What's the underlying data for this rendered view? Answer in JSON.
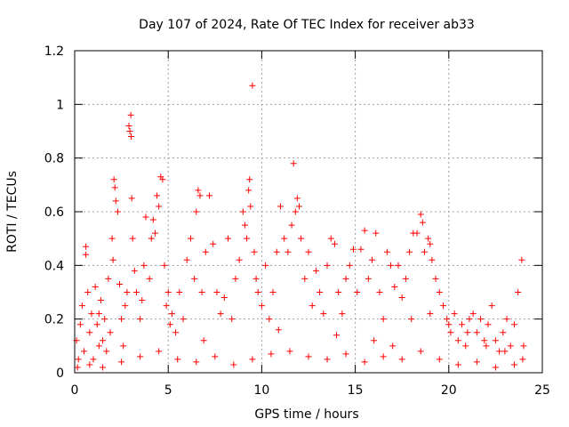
{
  "chart_data": {
    "type": "scatter",
    "title": "Day 107 of 2024, Rate Of TEC Index for receiver ab33",
    "xlabel": "GPS time / hours",
    "ylabel": "ROTI / TECUs",
    "xlim": [
      0,
      25
    ],
    "ylim": [
      0,
      1.2
    ],
    "xticks": [
      0,
      5,
      10,
      15,
      20,
      25
    ],
    "xtick_labels": [
      "0",
      "5",
      "10",
      "15",
      "20",
      "25"
    ],
    "yticks": [
      0,
      0.2,
      0.4,
      0.6,
      0.8,
      1.0,
      1.2
    ],
    "ytick_labels": [
      "0",
      "0.2",
      "0.4",
      "0.6",
      "0.8",
      "1",
      "1.2"
    ],
    "grid": true,
    "marker": "+",
    "color": "#ff0000",
    "series": [
      {
        "name": "ROTI",
        "points": [
          [
            0.1,
            0.12
          ],
          [
            0.2,
            0.05
          ],
          [
            0.3,
            0.18
          ],
          [
            0.4,
            0.25
          ],
          [
            0.5,
            0.08
          ],
          [
            0.6,
            0.47
          ],
          [
            0.6,
            0.44
          ],
          [
            0.7,
            0.3
          ],
          [
            0.8,
            0.15
          ],
          [
            0.9,
            0.22
          ],
          [
            1.0,
            0.05
          ],
          [
            1.1,
            0.32
          ],
          [
            1.2,
            0.18
          ],
          [
            1.3,
            0.1
          ],
          [
            1.4,
            0.27
          ],
          [
            1.5,
            0.12
          ],
          [
            1.6,
            0.2
          ],
          [
            1.7,
            0.08
          ],
          [
            1.8,
            0.35
          ],
          [
            1.9,
            0.15
          ],
          [
            2.0,
            0.5
          ],
          [
            2.05,
            0.42
          ],
          [
            2.1,
            0.72
          ],
          [
            2.15,
            0.69
          ],
          [
            2.2,
            0.64
          ],
          [
            2.3,
            0.6
          ],
          [
            2.4,
            0.33
          ],
          [
            2.5,
            0.2
          ],
          [
            2.6,
            0.1
          ],
          [
            2.7,
            0.25
          ],
          [
            2.8,
            0.3
          ],
          [
            2.9,
            0.92
          ],
          [
            2.95,
            0.9
          ],
          [
            3.0,
            0.96
          ],
          [
            3.02,
            0.88
          ],
          [
            3.05,
            0.65
          ],
          [
            3.1,
            0.5
          ],
          [
            3.2,
            0.38
          ],
          [
            3.3,
            0.3
          ],
          [
            3.5,
            0.2
          ],
          [
            3.6,
            0.27
          ],
          [
            3.7,
            0.4
          ],
          [
            3.8,
            0.58
          ],
          [
            4.0,
            0.35
          ],
          [
            4.1,
            0.5
          ],
          [
            4.2,
            0.57
          ],
          [
            4.3,
            0.52
          ],
          [
            4.4,
            0.66
          ],
          [
            4.5,
            0.62
          ],
          [
            4.6,
            0.73
          ],
          [
            4.7,
            0.72
          ],
          [
            4.8,
            0.4
          ],
          [
            4.9,
            0.25
          ],
          [
            5.0,
            0.3
          ],
          [
            5.2,
            0.22
          ],
          [
            5.4,
            0.15
          ],
          [
            5.6,
            0.3
          ],
          [
            5.8,
            0.2
          ],
          [
            6.0,
            0.42
          ],
          [
            6.2,
            0.5
          ],
          [
            6.4,
            0.35
          ],
          [
            6.5,
            0.6
          ],
          [
            6.6,
            0.68
          ],
          [
            6.7,
            0.66
          ],
          [
            6.8,
            0.3
          ],
          [
            7.0,
            0.45
          ],
          [
            7.2,
            0.66
          ],
          [
            7.4,
            0.48
          ],
          [
            7.6,
            0.3
          ],
          [
            7.8,
            0.22
          ],
          [
            8.0,
            0.28
          ],
          [
            8.2,
            0.5
          ],
          [
            8.4,
            0.2
          ],
          [
            8.6,
            0.35
          ],
          [
            8.8,
            0.42
          ],
          [
            9.0,
            0.6
          ],
          [
            9.1,
            0.55
          ],
          [
            9.2,
            0.5
          ],
          [
            9.3,
            0.68
          ],
          [
            9.35,
            0.72
          ],
          [
            9.4,
            0.62
          ],
          [
            9.5,
            1.07
          ],
          [
            9.6,
            0.45
          ],
          [
            9.7,
            0.35
          ],
          [
            9.8,
            0.3
          ],
          [
            10.0,
            0.25
          ],
          [
            10.2,
            0.4
          ],
          [
            10.4,
            0.2
          ],
          [
            10.6,
            0.3
          ],
          [
            10.8,
            0.45
          ],
          [
            11.0,
            0.62
          ],
          [
            11.2,
            0.5
          ],
          [
            11.4,
            0.45
          ],
          [
            11.6,
            0.55
          ],
          [
            11.7,
            0.78
          ],
          [
            11.8,
            0.6
          ],
          [
            11.9,
            0.65
          ],
          [
            12.0,
            0.62
          ],
          [
            12.1,
            0.5
          ],
          [
            12.3,
            0.35
          ],
          [
            12.5,
            0.45
          ],
          [
            12.7,
            0.25
          ],
          [
            12.9,
            0.38
          ],
          [
            13.1,
            0.3
          ],
          [
            13.3,
            0.22
          ],
          [
            13.5,
            0.4
          ],
          [
            13.7,
            0.5
          ],
          [
            13.9,
            0.48
          ],
          [
            14.1,
            0.3
          ],
          [
            14.3,
            0.22
          ],
          [
            14.5,
            0.35
          ],
          [
            14.7,
            0.4
          ],
          [
            14.9,
            0.46
          ],
          [
            15.1,
            0.3
          ],
          [
            15.3,
            0.46
          ],
          [
            15.5,
            0.53
          ],
          [
            15.7,
            0.35
          ],
          [
            15.9,
            0.42
          ],
          [
            16.1,
            0.52
          ],
          [
            16.3,
            0.3
          ],
          [
            16.5,
            0.2
          ],
          [
            16.7,
            0.45
          ],
          [
            16.9,
            0.4
          ],
          [
            17.1,
            0.32
          ],
          [
            17.3,
            0.4
          ],
          [
            17.5,
            0.28
          ],
          [
            17.7,
            0.35
          ],
          [
            17.9,
            0.45
          ],
          [
            18.1,
            0.52
          ],
          [
            18.3,
            0.52
          ],
          [
            18.5,
            0.59
          ],
          [
            18.6,
            0.56
          ],
          [
            18.7,
            0.45
          ],
          [
            18.9,
            0.5
          ],
          [
            19.0,
            0.48
          ],
          [
            19.1,
            0.42
          ],
          [
            19.3,
            0.35
          ],
          [
            19.5,
            0.3
          ],
          [
            19.7,
            0.25
          ],
          [
            19.9,
            0.2
          ],
          [
            20.1,
            0.15
          ],
          [
            20.3,
            0.22
          ],
          [
            20.5,
            0.12
          ],
          [
            20.7,
            0.18
          ],
          [
            20.9,
            0.1
          ],
          [
            21.1,
            0.2
          ],
          [
            21.3,
            0.22
          ],
          [
            21.5,
            0.15
          ],
          [
            21.7,
            0.2
          ],
          [
            21.9,
            0.12
          ],
          [
            22.1,
            0.18
          ],
          [
            22.3,
            0.25
          ],
          [
            22.5,
            0.12
          ],
          [
            22.7,
            0.08
          ],
          [
            22.9,
            0.15
          ],
          [
            23.1,
            0.2
          ],
          [
            23.3,
            0.1
          ],
          [
            23.5,
            0.18
          ],
          [
            23.7,
            0.3
          ],
          [
            23.9,
            0.42
          ],
          [
            0.15,
            0.02
          ],
          [
            0.8,
            0.03
          ],
          [
            1.5,
            0.02
          ],
          [
            2.5,
            0.04
          ],
          [
            3.5,
            0.06
          ],
          [
            4.5,
            0.08
          ],
          [
            5.5,
            0.05
          ],
          [
            6.5,
            0.04
          ],
          [
            7.5,
            0.06
          ],
          [
            8.5,
            0.03
          ],
          [
            9.5,
            0.05
          ],
          [
            10.5,
            0.07
          ],
          [
            11.5,
            0.08
          ],
          [
            12.5,
            0.06
          ],
          [
            13.5,
            0.05
          ],
          [
            14.5,
            0.07
          ],
          [
            15.5,
            0.04
          ],
          [
            16.5,
            0.06
          ],
          [
            17.5,
            0.05
          ],
          [
            18.5,
            0.08
          ],
          [
            19.5,
            0.05
          ],
          [
            20.5,
            0.03
          ],
          [
            21.5,
            0.04
          ],
          [
            22.5,
            0.02
          ],
          [
            23.5,
            0.03
          ],
          [
            23.95,
            0.05
          ],
          [
            1.3,
            0.22
          ],
          [
            5.1,
            0.18
          ],
          [
            6.9,
            0.12
          ],
          [
            10.9,
            0.16
          ],
          [
            14.0,
            0.14
          ],
          [
            16.0,
            0.12
          ],
          [
            17.0,
            0.1
          ],
          [
            18.0,
            0.2
          ],
          [
            19.0,
            0.22
          ],
          [
            20.0,
            0.18
          ],
          [
            21.0,
            0.15
          ],
          [
            22.0,
            0.1
          ],
          [
            23.0,
            0.08
          ],
          [
            24.0,
            0.1
          ]
        ]
      }
    ]
  }
}
